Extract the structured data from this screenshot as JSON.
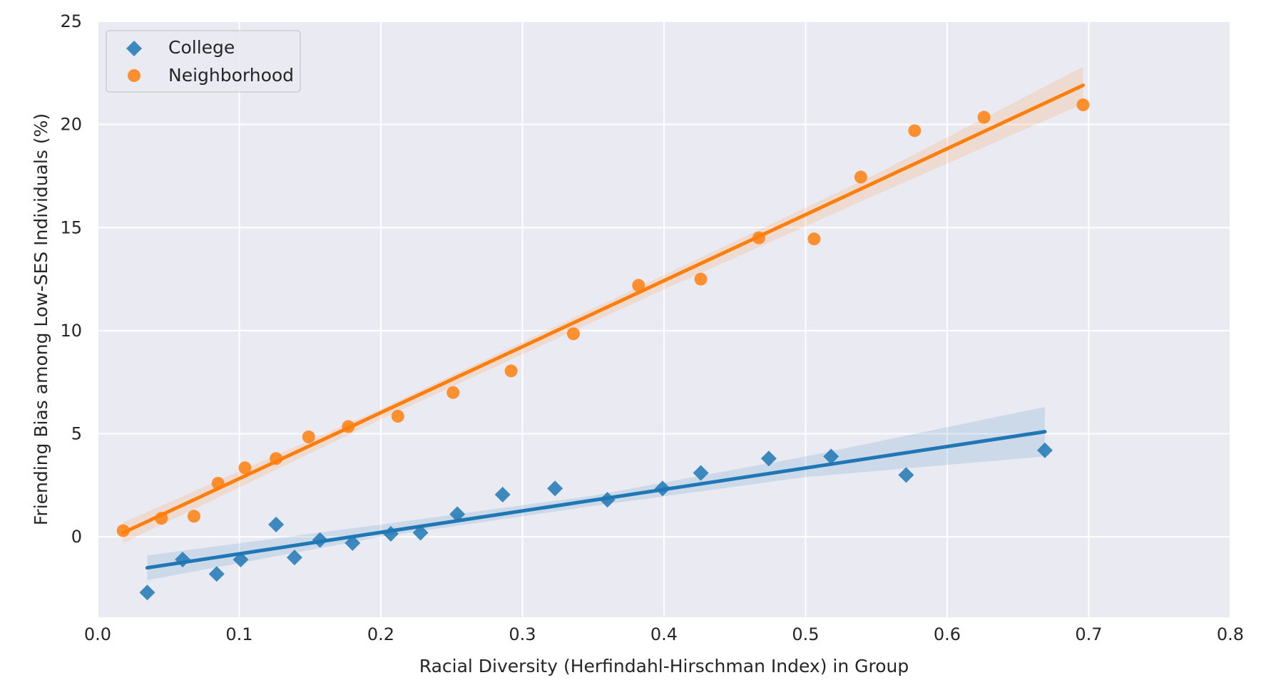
{
  "chart_data": {
    "type": "scatter",
    "title": "",
    "xlabel": "Racial Diversity (Herfindahl-Hirschman Index) in Group",
    "ylabel": "Friending Bias among Low-SES Individuals (%)",
    "xlim": [
      0.0,
      0.8
    ],
    "ylim": [
      -3.9,
      25
    ],
    "xticks": [
      "0.0",
      "0.1",
      "0.2",
      "0.3",
      "0.4",
      "0.5",
      "0.6",
      "0.7",
      "0.8"
    ],
    "yticks": [
      "0",
      "5",
      "10",
      "15",
      "20",
      "25"
    ],
    "grid": true,
    "legend_position": "top-left",
    "series": [
      {
        "name": "College",
        "color": "#1f77b4",
        "marker": "diamond",
        "points": [
          [
            0.035,
            -2.7
          ],
          [
            0.06,
            -1.1
          ],
          [
            0.084,
            -1.8
          ],
          [
            0.101,
            -1.1
          ],
          [
            0.126,
            0.6
          ],
          [
            0.139,
            -1.0
          ],
          [
            0.157,
            -0.15
          ],
          [
            0.18,
            -0.3
          ],
          [
            0.207,
            0.15
          ],
          [
            0.228,
            0.2
          ],
          [
            0.254,
            1.1
          ],
          [
            0.286,
            2.05
          ],
          [
            0.323,
            2.35
          ],
          [
            0.36,
            1.8
          ],
          [
            0.399,
            2.35
          ],
          [
            0.426,
            3.1
          ],
          [
            0.474,
            3.8
          ],
          [
            0.518,
            3.9
          ],
          [
            0.571,
            3.0
          ],
          [
            0.669,
            4.2
          ]
        ],
        "fit": {
          "x": [
            0.035,
            0.669
          ],
          "y": [
            -1.5,
            5.1
          ]
        },
        "ci_band": {
          "x": [
            0.035,
            0.2,
            0.35,
            0.5,
            0.669
          ],
          "lower": [
            -2.1,
            0.0,
            1.5,
            2.9,
            3.9
          ],
          "upper": [
            -0.9,
            0.6,
            2.0,
            3.9,
            6.3
          ]
        }
      },
      {
        "name": "Neighborhood",
        "color": "#ff7f0e",
        "marker": "circle",
        "points": [
          [
            0.018,
            0.3
          ],
          [
            0.045,
            0.9
          ],
          [
            0.068,
            1.0
          ],
          [
            0.085,
            2.6
          ],
          [
            0.104,
            3.35
          ],
          [
            0.126,
            3.8
          ],
          [
            0.149,
            4.85
          ],
          [
            0.177,
            5.35
          ],
          [
            0.212,
            5.85
          ],
          [
            0.251,
            7.0
          ],
          [
            0.292,
            8.05
          ],
          [
            0.336,
            9.85
          ],
          [
            0.382,
            12.2
          ],
          [
            0.426,
            12.5
          ],
          [
            0.467,
            14.5
          ],
          [
            0.506,
            14.45
          ],
          [
            0.539,
            17.45
          ],
          [
            0.577,
            19.7
          ],
          [
            0.626,
            20.35
          ],
          [
            0.696,
            20.95
          ]
        ],
        "fit": {
          "x": [
            0.018,
            0.696
          ],
          "y": [
            0.2,
            21.9
          ]
        },
        "ci_band": {
          "x": [
            0.018,
            0.2,
            0.4,
            0.55,
            0.696
          ],
          "lower": [
            -0.3,
            5.7,
            12.0,
            16.6,
            21.0
          ],
          "upper": [
            0.7,
            6.2,
            12.7,
            17.6,
            22.8
          ]
        }
      }
    ]
  }
}
